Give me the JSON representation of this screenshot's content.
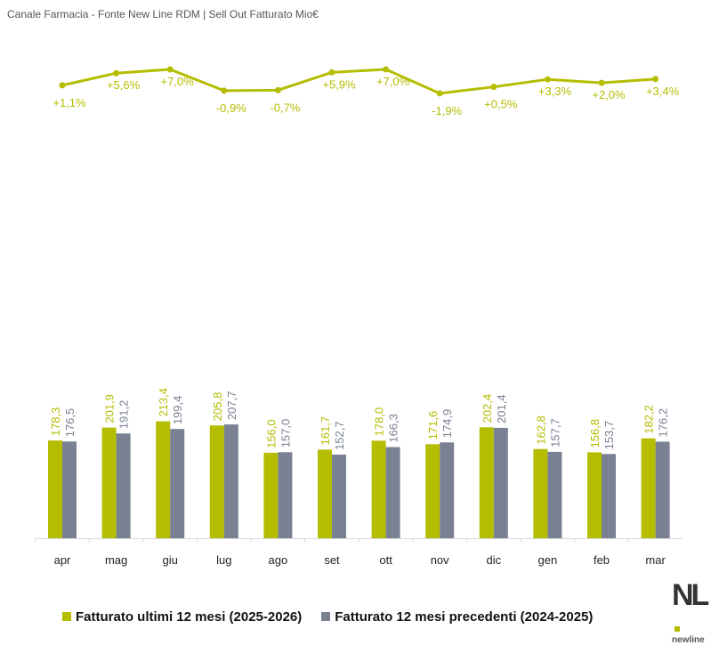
{
  "title": "Canale Farmacia - Fonte New Line RDM | Sell Out Fatturato Mio€",
  "logo": {
    "text": "NL",
    "subtext": "newline"
  },
  "colors": {
    "current": "#b5bd00",
    "previous": "#7a8193",
    "line": "#b5bd00"
  },
  "chart_data": {
    "type": "bar",
    "categories": [
      "apr",
      "mag",
      "giu",
      "lug",
      "ago",
      "set",
      "ott",
      "nov",
      "dic",
      "gen",
      "feb",
      "mar"
    ],
    "series": [
      {
        "name": "Fatturato ultimi 12 mesi (2025-2026)",
        "values": [
          178.3,
          201.9,
          213.4,
          205.8,
          156.0,
          161.7,
          178.0,
          171.6,
          202.4,
          162.8,
          156.8,
          182.2
        ],
        "labels": [
          "178,3",
          "201,9",
          "213,4",
          "205,8",
          "156,0",
          "161,7",
          "178,0",
          "171,6",
          "202,4",
          "162,8",
          "156,8",
          "182,2"
        ]
      },
      {
        "name": "Fatturato 12 mesi precedenti (2024-2025)",
        "values": [
          176.5,
          191.2,
          199.4,
          207.7,
          157.0,
          152.7,
          166.3,
          174.9,
          201.4,
          157.7,
          153.7,
          176.2
        ],
        "labels": [
          "176,5",
          "191,2",
          "199,4",
          "207,7",
          "157,0",
          "152,7",
          "166,3",
          "174,9",
          "201,4",
          "157,7",
          "153,7",
          "176,2"
        ]
      }
    ],
    "growth": {
      "type": "line",
      "values": [
        1.1,
        5.6,
        7.0,
        -0.9,
        -0.7,
        5.9,
        7.0,
        -1.9,
        0.5,
        3.3,
        2.0,
        3.4
      ],
      "labels": [
        "+1,1%",
        "+5,6%",
        "+7,0%",
        "-0,9%",
        "-0,7%",
        "+5,9%",
        "+7,0%",
        "-1,9%",
        "+0,5%",
        "+3,3%",
        "+2,0%",
        "+3,4%"
      ]
    },
    "ylim": [
      0,
      220
    ],
    "legend": "bottom",
    "grid": false
  }
}
